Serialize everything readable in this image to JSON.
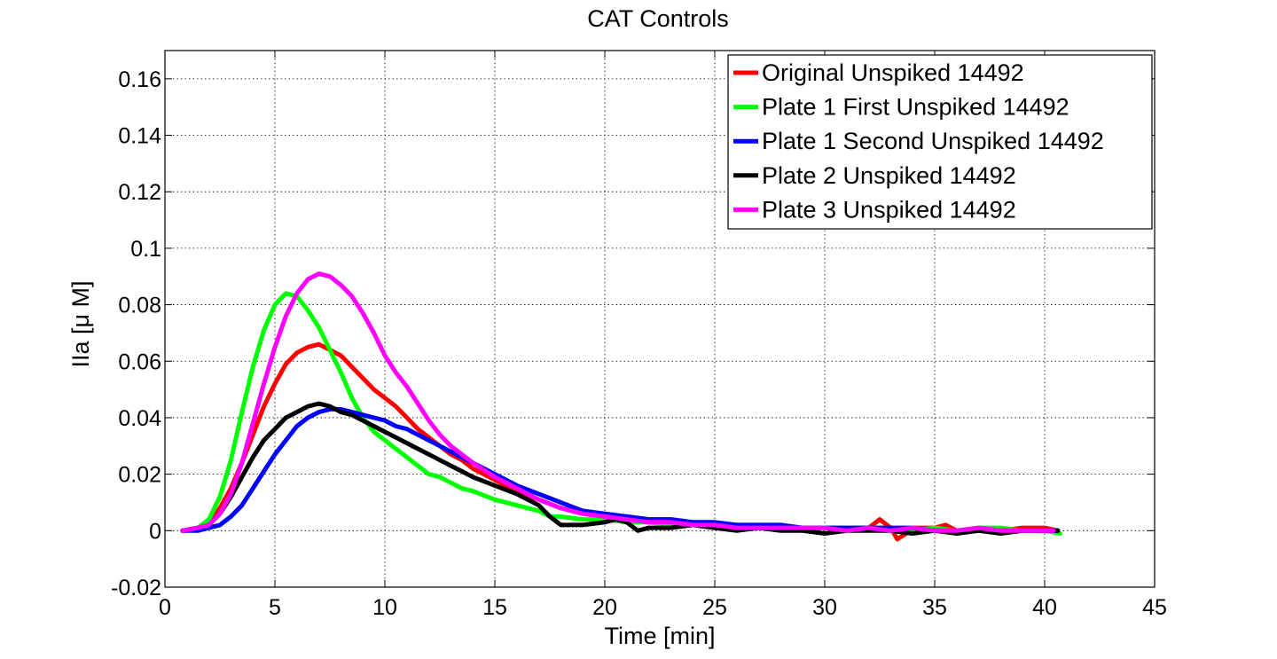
{
  "chart_data": {
    "type": "line",
    "title": "CAT Controls",
    "xlabel": "Time [min]",
    "ylabel": "IIa [μ M]",
    "xlim": [
      0,
      45
    ],
    "ylim": [
      -0.02,
      0.17
    ],
    "xticks": [
      0,
      5,
      10,
      15,
      20,
      25,
      30,
      35,
      40,
      45
    ],
    "xtick_labels": [
      "0",
      "5",
      "10",
      "15",
      "20",
      "25",
      "30",
      "35",
      "40",
      "45"
    ],
    "yticks": [
      -0.02,
      0,
      0.02,
      0.04,
      0.06,
      0.08,
      0.1,
      0.12,
      0.14,
      0.16
    ],
    "ytick_labels": [
      "-0.02",
      "0",
      "0.02",
      "0.04",
      "0.06",
      "0.08",
      "0.1",
      "0.12",
      "0.14",
      "0.16"
    ],
    "grid": true,
    "legend_position": "top-right",
    "series": [
      {
        "name": "Original Unspiked 14492",
        "color": "#ff0000",
        "x": [
          0.8,
          1.5,
          2,
          2.5,
          3,
          3.5,
          4,
          4.5,
          5,
          5.5,
          6,
          6.5,
          7,
          7.5,
          8,
          8.5,
          9,
          9.5,
          10,
          10.5,
          11,
          11.5,
          12,
          12.5,
          13,
          13.5,
          14,
          15,
          16,
          17,
          18,
          19,
          20,
          21,
          22,
          23,
          24,
          25,
          26,
          27,
          28,
          29,
          30,
          31,
          32,
          32.5,
          33,
          33.3,
          33.7,
          34,
          35,
          35.5,
          36,
          37,
          38,
          39,
          40,
          40.6
        ],
        "y": [
          0,
          0.001,
          0.003,
          0.008,
          0.015,
          0.024,
          0.034,
          0.044,
          0.052,
          0.059,
          0.063,
          0.065,
          0.066,
          0.064,
          0.062,
          0.058,
          0.054,
          0.05,
          0.047,
          0.044,
          0.04,
          0.036,
          0.033,
          0.03,
          0.027,
          0.025,
          0.022,
          0.018,
          0.014,
          0.011,
          0.008,
          0.006,
          0.005,
          0.005,
          0.004,
          0.004,
          0.003,
          0.002,
          0.002,
          0.001,
          0.001,
          0.001,
          0.001,
          0.001,
          0.001,
          0.004,
          0.001,
          -0.003,
          -0.001,
          0.001,
          0.001,
          0.002,
          0,
          0.001,
          0,
          0.001,
          0.001,
          0
        ]
      },
      {
        "name": "Plate 1 First Unspiked 14492",
        "color": "#00ff00",
        "x": [
          0.8,
          1.5,
          2,
          2.5,
          3,
          3.5,
          4,
          4.5,
          5,
          5.5,
          6,
          6.5,
          7,
          7.5,
          8,
          8.5,
          9,
          9.5,
          10,
          10.5,
          11,
          11.5,
          12,
          12.5,
          13,
          13.5,
          14,
          15,
          16,
          17,
          17.5,
          18,
          19,
          20,
          21,
          22,
          23,
          24,
          25,
          26,
          27,
          28,
          29,
          30,
          31,
          32,
          33,
          34,
          35,
          36,
          37,
          38,
          39,
          40,
          40.7
        ],
        "y": [
          0,
          0.001,
          0.004,
          0.012,
          0.025,
          0.042,
          0.058,
          0.071,
          0.08,
          0.084,
          0.083,
          0.078,
          0.072,
          0.064,
          0.056,
          0.047,
          0.04,
          0.035,
          0.032,
          0.029,
          0.026,
          0.023,
          0.02,
          0.019,
          0.017,
          0.015,
          0.014,
          0.011,
          0.009,
          0.007,
          0.005,
          0.005,
          0.004,
          0.004,
          0.003,
          0.003,
          0.002,
          0.002,
          0.002,
          0.002,
          0.001,
          0.001,
          0.001,
          0.001,
          0.001,
          0.001,
          0.001,
          0,
          0.001,
          0,
          0.001,
          0.001,
          0,
          0,
          -0.001
        ]
      },
      {
        "name": "Plate 1 Second Unspiked 14492",
        "color": "#0000ff",
        "x": [
          0.8,
          1.5,
          2,
          2.5,
          3,
          3.5,
          4,
          4.5,
          5,
          5.5,
          6,
          6.5,
          7,
          7.5,
          8,
          8.5,
          9,
          9.5,
          10,
          10.5,
          11,
          11.5,
          12,
          12.5,
          13,
          13.5,
          14,
          15,
          16,
          17,
          18,
          19,
          20,
          21,
          22,
          23,
          24,
          25,
          26,
          27,
          28,
          29,
          30,
          31,
          32,
          33,
          34,
          35,
          36,
          37,
          38,
          39,
          40,
          40.6
        ],
        "y": [
          0,
          0,
          0.001,
          0.002,
          0.005,
          0.009,
          0.015,
          0.021,
          0.027,
          0.032,
          0.037,
          0.04,
          0.042,
          0.043,
          0.043,
          0.042,
          0.041,
          0.04,
          0.039,
          0.037,
          0.036,
          0.034,
          0.032,
          0.03,
          0.028,
          0.026,
          0.024,
          0.02,
          0.016,
          0.013,
          0.01,
          0.007,
          0.006,
          0.005,
          0.004,
          0.004,
          0.003,
          0.003,
          0.002,
          0.002,
          0.002,
          0.001,
          0.001,
          0.001,
          0.001,
          0.001,
          0.001,
          0,
          0,
          0,
          0,
          0,
          0,
          0
        ]
      },
      {
        "name": "Plate 2 Unspiked 14492",
        "color": "#000000",
        "x": [
          0.8,
          1.5,
          2,
          2.5,
          3,
          3.5,
          4,
          4.5,
          5,
          5.5,
          6,
          6.5,
          7,
          7.5,
          8,
          8.5,
          9,
          9.5,
          10,
          10.5,
          11,
          11.5,
          12,
          12.5,
          13,
          13.5,
          14,
          15,
          16,
          17,
          17.5,
          18,
          19,
          20,
          20.5,
          21,
          21.5,
          22,
          23,
          24,
          25,
          26,
          27,
          28,
          29,
          30,
          31,
          32,
          33,
          34,
          35,
          36,
          37,
          38,
          39,
          40,
          40.6
        ],
        "y": [
          0,
          0.001,
          0.002,
          0.006,
          0.012,
          0.019,
          0.026,
          0.032,
          0.036,
          0.04,
          0.042,
          0.044,
          0.045,
          0.044,
          0.042,
          0.041,
          0.039,
          0.037,
          0.035,
          0.033,
          0.031,
          0.029,
          0.027,
          0.025,
          0.023,
          0.021,
          0.019,
          0.016,
          0.013,
          0.009,
          0.005,
          0.002,
          0.002,
          0.003,
          0.004,
          0.003,
          0,
          0.001,
          0.001,
          0.002,
          0.001,
          0,
          0.001,
          0,
          0,
          -0.001,
          0,
          0,
          0,
          -0.001,
          0,
          -0.001,
          0,
          -0.001,
          0,
          0,
          0
        ]
      },
      {
        "name": "Plate 3 Unspiked 14492",
        "color": "#ff00ff",
        "x": [
          0.8,
          1.5,
          2,
          2.5,
          3,
          3.5,
          4,
          4.5,
          5,
          5.5,
          6,
          6.5,
          7,
          7.5,
          8,
          8.5,
          9,
          9.5,
          10,
          10.5,
          11,
          11.5,
          12,
          12.5,
          13,
          13.5,
          14,
          15,
          16,
          17,
          18,
          19,
          20,
          21,
          22,
          23,
          24,
          25,
          26,
          27,
          28,
          29,
          30,
          31,
          32,
          33,
          34,
          35,
          36,
          37,
          38,
          39,
          40,
          40.4
        ],
        "y": [
          0,
          0.001,
          0.002,
          0.006,
          0.013,
          0.024,
          0.038,
          0.052,
          0.065,
          0.076,
          0.084,
          0.089,
          0.091,
          0.09,
          0.087,
          0.083,
          0.077,
          0.07,
          0.062,
          0.056,
          0.051,
          0.045,
          0.039,
          0.034,
          0.03,
          0.027,
          0.024,
          0.019,
          0.015,
          0.011,
          0.008,
          0.006,
          0.005,
          0.004,
          0.003,
          0.003,
          0.002,
          0.002,
          0.001,
          0.001,
          0.001,
          0.001,
          0.001,
          0,
          0.001,
          0,
          0.001,
          0,
          0,
          0.001,
          0,
          0,
          0,
          0
        ]
      }
    ]
  }
}
